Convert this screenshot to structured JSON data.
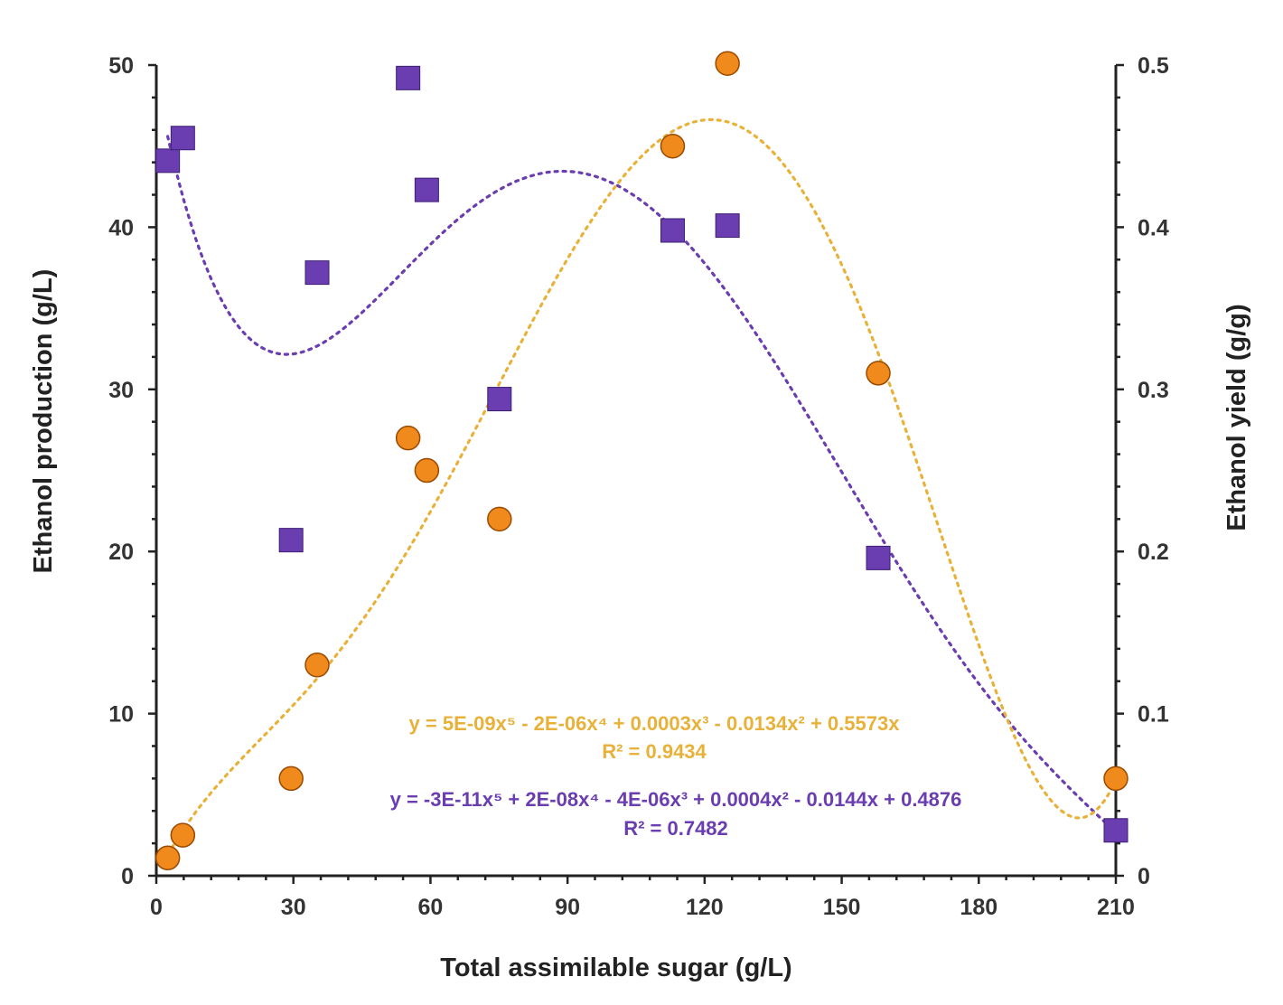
{
  "chart_data": {
    "type": "scatter",
    "xlabel": "Total assimilable sugar (g/L)",
    "ylabel_left": "Ethanol production (g/L)",
    "ylabel_right": "Ethanol yield (g/g)",
    "xlim": [
      0,
      210
    ],
    "ylim_left": [
      0,
      50
    ],
    "ylim_right": [
      0,
      0.5
    ],
    "x_ticks": [
      0,
      30,
      60,
      90,
      120,
      150,
      180,
      210
    ],
    "x_tick_labels": [
      "0",
      "30",
      "60",
      "90",
      "120",
      "150",
      "180",
      "210"
    ],
    "y_left_ticks": [
      0,
      10,
      20,
      30,
      40,
      50
    ],
    "y_left_tick_labels": [
      "0",
      "10",
      "20",
      "30",
      "40",
      "50"
    ],
    "y_right_ticks": [
      0,
      0.1,
      0.2,
      0.3,
      0.4,
      0.5
    ],
    "y_right_tick_labels": [
      "0",
      "0.1",
      "0.2",
      "0.3",
      "0.4",
      "0.5"
    ],
    "grid": false,
    "series": [
      {
        "name": "Ethanol production",
        "axis": "left",
        "marker": "circle",
        "color": "#F08A1C",
        "x": [
          2.5,
          5.8,
          29.5,
          35.2,
          55.1,
          59.2,
          75.1,
          113.0,
          125.0,
          158.0,
          210.0
        ],
        "y": [
          1.1,
          2.5,
          6.0,
          13.0,
          27.0,
          25.0,
          22.0,
          45.0,
          50.1,
          31.0,
          6.0
        ],
        "trendline": {
          "type": "poly5",
          "color": "#E8B23A",
          "equation": "y = 5E-09x⁵ - 2E-06x⁴ + 0.0003x³ - 0.0134x² + 0.5573x",
          "r2": "R² = 0.9434"
        }
      },
      {
        "name": "Ethanol yield",
        "axis": "right",
        "marker": "square",
        "color": "#6A3DB0",
        "x": [
          2.5,
          5.8,
          29.5,
          35.2,
          55.1,
          59.2,
          75.1,
          113.0,
          125.0,
          158.0,
          210.0
        ],
        "y": [
          0.441,
          0.455,
          0.207,
          0.372,
          0.492,
          0.423,
          0.294,
          0.398,
          0.401,
          0.196,
          0.028
        ],
        "trendline": {
          "type": "poly5",
          "color": "#6A3DB0",
          "equation": "y = -3E-11x⁵ + 2E-08x⁴ - 4E-06x³ + 0.0004x² - 0.0144x + 0.4876",
          "r2": "R² = 0.7482"
        }
      }
    ]
  }
}
